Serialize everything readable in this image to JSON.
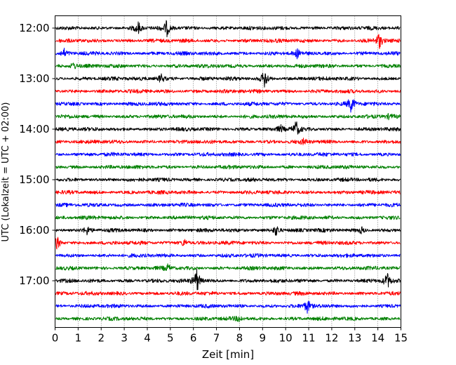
{
  "chart_data": {
    "type": "line",
    "title": "",
    "xlabel": "Zeit  [min]",
    "ylabel": "UTC (Lokalzeit = UTC + 02:00)",
    "xlim": [
      0,
      15
    ],
    "x_ticks": [
      "0",
      "1",
      "2",
      "3",
      "4",
      "5",
      "6",
      "7",
      "8",
      "9",
      "10",
      "11",
      "12",
      "13",
      "14",
      "15"
    ],
    "y_tick_labels": [
      "12:00",
      "13:00",
      "14:00",
      "15:00",
      "16:00",
      "17:00"
    ],
    "grid": "vertical dotted lines at each minute",
    "trace_colors": [
      "#000000",
      "#ff0000",
      "#0000ff",
      "#008000"
    ],
    "series": [
      {
        "start": "12:00",
        "color": "#000000",
        "events": [
          {
            "t": 3.6,
            "amp": 1.0
          },
          {
            "t": 4.85,
            "amp": 1.2
          }
        ]
      },
      {
        "start": "12:15",
        "color": "#ff0000",
        "events": [
          {
            "t": 14.05,
            "amp": 1.3
          }
        ]
      },
      {
        "start": "12:30",
        "color": "#0000ff",
        "events": [
          {
            "t": 0.4,
            "amp": 0.6
          },
          {
            "t": 10.5,
            "amp": 0.6
          }
        ]
      },
      {
        "start": "12:45",
        "color": "#008000",
        "events": [
          {
            "t": 0.8,
            "amp": 0.6
          }
        ]
      },
      {
        "start": "13:00",
        "color": "#000000",
        "events": [
          {
            "t": 4.6,
            "amp": 0.8
          },
          {
            "t": 9.1,
            "amp": 1.6
          }
        ]
      },
      {
        "start": "13:15",
        "color": "#ff0000",
        "events": []
      },
      {
        "start": "13:30",
        "color": "#0000ff",
        "events": [
          {
            "t": 12.85,
            "amp": 1.4
          }
        ]
      },
      {
        "start": "13:45",
        "color": "#008000",
        "events": [
          {
            "t": 14.5,
            "amp": 0.4
          }
        ]
      },
      {
        "start": "14:00",
        "color": "#000000",
        "events": [
          {
            "t": 9.8,
            "amp": 0.5
          },
          {
            "t": 10.45,
            "amp": 1.3
          }
        ]
      },
      {
        "start": "14:15",
        "color": "#ff0000",
        "events": [
          {
            "t": 10.8,
            "amp": 0.4
          }
        ]
      },
      {
        "start": "14:30",
        "color": "#0000ff",
        "events": []
      },
      {
        "start": "14:45",
        "color": "#008000",
        "events": []
      },
      {
        "start": "15:00",
        "color": "#000000",
        "events": []
      },
      {
        "start": "15:15",
        "color": "#ff0000",
        "events": []
      },
      {
        "start": "15:30",
        "color": "#0000ff",
        "events": []
      },
      {
        "start": "15:45",
        "color": "#008000",
        "events": []
      },
      {
        "start": "16:00",
        "color": "#000000",
        "events": [
          {
            "t": 1.4,
            "amp": 0.6
          },
          {
            "t": 9.6,
            "amp": 1.0
          },
          {
            "t": 13.3,
            "amp": 0.5
          }
        ]
      },
      {
        "start": "16:15",
        "color": "#ff0000",
        "events": [
          {
            "t": 0.1,
            "amp": 1.0
          },
          {
            "t": 5.6,
            "amp": 0.7
          }
        ]
      },
      {
        "start": "16:30",
        "color": "#0000ff",
        "events": []
      },
      {
        "start": "16:45",
        "color": "#008000",
        "events": [
          {
            "t": 4.9,
            "amp": 0.5
          }
        ]
      },
      {
        "start": "17:00",
        "color": "#000000",
        "events": [
          {
            "t": 6.15,
            "amp": 2.0
          },
          {
            "t": 14.4,
            "amp": 1.3
          }
        ]
      },
      {
        "start": "17:15",
        "color": "#ff0000",
        "events": []
      },
      {
        "start": "17:30",
        "color": "#0000ff",
        "events": [
          {
            "t": 10.95,
            "amp": 1.1
          }
        ]
      },
      {
        "start": "17:45",
        "color": "#008000",
        "events": [
          {
            "t": 8.0,
            "amp": 0.5
          }
        ]
      }
    ]
  }
}
